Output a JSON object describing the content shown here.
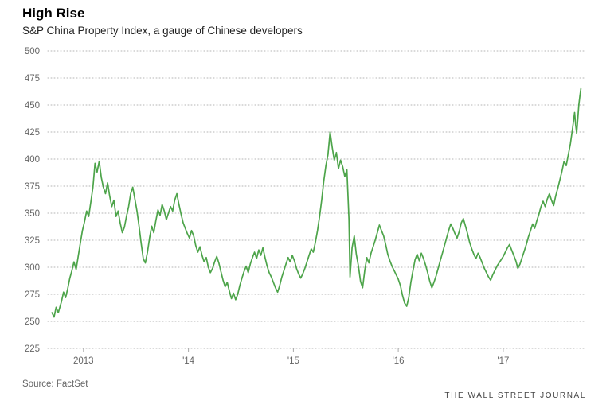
{
  "header": {
    "title": "High Rise",
    "subtitle": "S&P China Property Index, a gauge of Chinese developers"
  },
  "footer": {
    "source": "Source: FactSet",
    "brand": "THE WALL STREET JOURNAL"
  },
  "chart_data": {
    "type": "line",
    "title": "High Rise",
    "subtitle": "S&P China Property Index, a gauge of Chinese developers",
    "source": "FactSet",
    "line_color": "#4da44a",
    "grid_color": "#b5b5b5",
    "tick_color": "#aaaaaa",
    "axis_text_color": "#666666",
    "grid": "horizontal-dotted",
    "legend": "none",
    "xlabel": "",
    "ylabel": "",
    "ylim": [
      225,
      500
    ],
    "yticks": [
      225,
      250,
      275,
      300,
      325,
      350,
      375,
      400,
      425,
      450,
      475,
      500
    ],
    "xlim": [
      2012.66,
      2017.79
    ],
    "xticks": [
      {
        "value": 2013,
        "label": "2013"
      },
      {
        "value": 2014,
        "label": "'14"
      },
      {
        "value": 2015,
        "label": "'15"
      },
      {
        "value": 2016,
        "label": "'16"
      },
      {
        "value": 2017,
        "label": "'17"
      }
    ],
    "series": [
      {
        "name": "S&P China Property Index",
        "x": [
          2012.7,
          2012.72,
          2012.74,
          2012.76,
          2012.79,
          2012.81,
          2012.83,
          2012.85,
          2012.87,
          2012.89,
          2012.91,
          2012.93,
          2012.95,
          2012.97,
          2012.99,
          2013.01,
          2013.03,
          2013.05,
          2013.07,
          2013.09,
          2013.11,
          2013.13,
          2013.15,
          2013.17,
          2013.19,
          2013.21,
          2013.23,
          2013.25,
          2013.27,
          2013.29,
          2013.31,
          2013.33,
          2013.35,
          2013.37,
          2013.39,
          2013.41,
          2013.43,
          2013.45,
          2013.47,
          2013.49,
          2013.51,
          2013.53,
          2013.55,
          2013.57,
          2013.59,
          2013.61,
          2013.63,
          2013.65,
          2013.67,
          2013.69,
          2013.71,
          2013.73,
          2013.75,
          2013.77,
          2013.79,
          2013.81,
          2013.83,
          2013.85,
          2013.87,
          2013.89,
          2013.91,
          2013.93,
          2013.95,
          2013.97,
          2013.99,
          2014.01,
          2014.03,
          2014.05,
          2014.07,
          2014.09,
          2014.11,
          2014.13,
          2014.15,
          2014.17,
          2014.19,
          2014.21,
          2014.23,
          2014.25,
          2014.27,
          2014.29,
          2014.31,
          2014.33,
          2014.35,
          2014.37,
          2014.39,
          2014.41,
          2014.43,
          2014.45,
          2014.47,
          2014.49,
          2014.51,
          2014.53,
          2014.55,
          2014.57,
          2014.59,
          2014.61,
          2014.63,
          2014.65,
          2014.67,
          2014.69,
          2014.71,
          2014.73,
          2014.75,
          2014.77,
          2014.79,
          2014.81,
          2014.83,
          2014.85,
          2014.87,
          2014.89,
          2014.91,
          2014.93,
          2014.95,
          2014.97,
          2014.99,
          2015.01,
          2015.03,
          2015.05,
          2015.07,
          2015.09,
          2015.11,
          2015.13,
          2015.15,
          2015.17,
          2015.19,
          2015.21,
          2015.23,
          2015.25,
          2015.27,
          2015.29,
          2015.31,
          2015.33,
          2015.35,
          2015.37,
          2015.39,
          2015.41,
          2015.43,
          2015.45,
          2015.47,
          2015.49,
          2015.51,
          2015.53,
          2015.54,
          2015.56,
          2015.58,
          2015.6,
          2015.62,
          2015.64,
          2015.66,
          2015.68,
          2015.7,
          2015.72,
          2015.74,
          2015.76,
          2015.78,
          2015.8,
          2015.82,
          2015.84,
          2015.86,
          2015.88,
          2015.9,
          2015.92,
          2015.94,
          2015.96,
          2015.98,
          2016.0,
          2016.02,
          2016.04,
          2016.06,
          2016.08,
          2016.1,
          2016.12,
          2016.14,
          2016.16,
          2016.18,
          2016.2,
          2016.22,
          2016.24,
          2016.26,
          2016.28,
          2016.3,
          2016.32,
          2016.34,
          2016.36,
          2016.38,
          2016.4,
          2016.42,
          2016.44,
          2016.46,
          2016.48,
          2016.5,
          2016.52,
          2016.54,
          2016.56,
          2016.58,
          2016.6,
          2016.62,
          2016.64,
          2016.66,
          2016.68,
          2016.7,
          2016.72,
          2016.74,
          2016.76,
          2016.78,
          2016.8,
          2016.82,
          2016.84,
          2016.86,
          2016.88,
          2016.9,
          2016.92,
          2016.94,
          2016.96,
          2016.98,
          2017.0,
          2017.02,
          2017.04,
          2017.06,
          2017.08,
          2017.1,
          2017.12,
          2017.14,
          2017.16,
          2017.18,
          2017.2,
          2017.22,
          2017.24,
          2017.26,
          2017.28,
          2017.3,
          2017.32,
          2017.34,
          2017.36,
          2017.38,
          2017.4,
          2017.42,
          2017.44,
          2017.46,
          2017.48,
          2017.5,
          2017.52,
          2017.54,
          2017.56,
          2017.58,
          2017.6,
          2017.62,
          2017.64,
          2017.66,
          2017.68,
          2017.69,
          2017.7,
          2017.71,
          2017.72,
          2017.73,
          2017.74
        ],
        "y": [
          258,
          254,
          263,
          258,
          268,
          277,
          272,
          280,
          290,
          297,
          305,
          298,
          310,
          322,
          334,
          342,
          352,
          347,
          360,
          374,
          396,
          388,
          398,
          383,
          374,
          368,
          378,
          366,
          356,
          362,
          347,
          352,
          341,
          332,
          337,
          347,
          356,
          368,
          374,
          363,
          352,
          338,
          322,
          308,
          304,
          314,
          327,
          338,
          332,
          343,
          353,
          348,
          358,
          352,
          344,
          350,
          356,
          352,
          362,
          368,
          358,
          349,
          341,
          336,
          331,
          327,
          334,
          329,
          320,
          314,
          319,
          311,
          305,
          309,
          300,
          295,
          299,
          305,
          310,
          304,
          296,
          288,
          282,
          286,
          278,
          271,
          276,
          270,
          275,
          283,
          290,
          296,
          301,
          295,
          303,
          309,
          314,
          308,
          316,
          311,
          318,
          309,
          301,
          295,
          291,
          286,
          281,
          277,
          283,
          291,
          297,
          303,
          309,
          305,
          311,
          306,
          299,
          294,
          290,
          294,
          299,
          305,
          311,
          317,
          314,
          323,
          334,
          347,
          362,
          380,
          394,
          404,
          425,
          411,
          399,
          406,
          391,
          399,
          393,
          384,
          390,
          344,
          291,
          318,
          329,
          312,
          301,
          287,
          281,
          297,
          309,
          304,
          313,
          319,
          325,
          332,
          339,
          334,
          329,
          321,
          312,
          306,
          301,
          297,
          293,
          289,
          283,
          274,
          267,
          264,
          272,
          286,
          297,
          307,
          312,
          306,
          313,
          308,
          302,
          295,
          287,
          281,
          286,
          292,
          299,
          306,
          313,
          320,
          327,
          334,
          340,
          336,
          331,
          327,
          333,
          341,
          345,
          338,
          331,
          323,
          317,
          312,
          308,
          313,
          309,
          304,
          299,
          295,
          291,
          288,
          293,
          297,
          301,
          304,
          307,
          310,
          314,
          318,
          321,
          316,
          311,
          306,
          299,
          303,
          309,
          315,
          321,
          328,
          334,
          340,
          336,
          343,
          349,
          356,
          361,
          356,
          363,
          368,
          362,
          357,
          366,
          373,
          381,
          389,
          398,
          394,
          404,
          414,
          428,
          443,
          432,
          424,
          437,
          450,
          458,
          465
        ]
      }
    ]
  }
}
